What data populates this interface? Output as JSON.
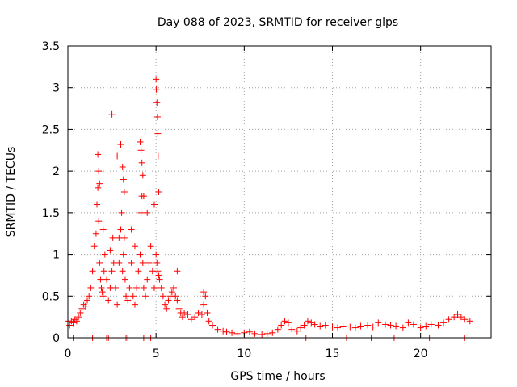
{
  "chart_data": {
    "type": "scatter",
    "title": "Day 088 of 2023, SRMTID for receiver glps",
    "xlabel": "GPS time / hours",
    "ylabel": "SRMTID / TECUs",
    "xlim": [
      0,
      24
    ],
    "ylim": [
      0,
      3.5
    ],
    "xticks": [
      0,
      5,
      10,
      15,
      20
    ],
    "xtick_labels": [
      "0",
      "5",
      "10",
      "15",
      "20"
    ],
    "yticks": [
      0,
      0.5,
      1,
      1.5,
      2,
      2.5,
      3,
      3.5
    ],
    "ytick_labels": [
      "0",
      "0.5",
      "1",
      "1.5",
      "2",
      "2.5",
      "3",
      "3.5"
    ],
    "grid": true,
    "marker": "+",
    "color": "#ff0000",
    "series": [
      {
        "name": "SRMTID",
        "x": [
          0.0,
          0.1,
          0.2,
          0.3,
          0.4,
          0.5,
          0.6,
          0.7,
          0.8,
          0.9,
          1.0,
          1.1,
          1.2,
          1.3,
          1.4,
          1.5,
          1.6,
          1.65,
          1.7,
          1.75,
          1.8,
          1.85,
          1.9,
          1.95,
          2.0,
          2.05,
          2.1,
          2.2,
          2.3,
          2.4,
          2.5,
          2.55,
          2.6,
          2.7,
          2.8,
          2.9,
          3.0,
          3.05,
          3.1,
          3.15,
          3.2,
          3.25,
          3.3,
          3.4,
          3.5,
          3.6,
          3.7,
          3.8,
          3.9,
          4.0,
          4.1,
          4.15,
          4.2,
          4.25,
          4.3,
          4.4,
          4.5,
          4.6,
          4.7,
          4.8,
          4.9,
          5.0,
          5.05,
          5.1,
          5.15,
          5.2,
          5.3,
          5.4,
          5.5,
          5.6,
          5.7,
          5.8,
          5.9,
          6.0,
          6.1,
          6.2,
          6.3,
          6.4,
          6.5,
          6.6,
          6.8,
          7.0,
          7.2,
          7.4,
          7.6,
          7.7,
          7.8,
          7.9,
          8.0,
          8.2,
          8.5,
          8.8,
          9.0,
          9.3,
          9.6,
          10.0,
          10.3,
          10.6,
          11.0,
          11.3,
          11.6,
          11.9,
          12.1,
          12.3,
          12.5,
          12.7,
          13.0,
          13.2,
          13.4,
          13.6,
          13.8,
          14.0,
          14.3,
          14.6,
          15.0,
          15.3,
          15.6,
          16.0,
          16.3,
          16.6,
          17.0,
          17.3,
          17.6,
          18.0,
          18.3,
          18.6,
          19.0,
          19.3,
          19.6,
          20.0,
          20.3,
          20.6,
          21.0,
          21.3,
          21.6,
          21.9,
          22.1,
          22.3,
          22.5,
          22.8,
          1.7,
          1.75,
          1.8,
          2.5,
          2.8,
          3.0,
          3.1,
          3.15,
          3.2,
          4.1,
          4.15,
          4.2,
          4.25,
          4.3,
          5.0,
          5.02,
          5.05,
          5.08,
          5.1,
          5.12,
          5.15,
          2.0,
          2.4,
          2.9,
          3.6,
          3.8,
          4.5,
          4.9,
          6.2,
          7.7,
          0.3,
          1.4,
          2.2,
          2.3,
          3.3,
          3.4,
          4.3,
          4.6,
          4.7,
          13.5,
          15.8,
          17.2,
          18.5,
          20.5,
          22.5
        ],
        "y": [
          0.2,
          0.15,
          0.2,
          0.18,
          0.22,
          0.2,
          0.25,
          0.3,
          0.35,
          0.4,
          0.38,
          0.45,
          0.5,
          0.6,
          0.8,
          1.1,
          1.25,
          1.6,
          1.8,
          1.4,
          0.9,
          0.7,
          0.6,
          0.55,
          0.5,
          0.8,
          1.0,
          0.7,
          0.45,
          0.6,
          0.8,
          1.2,
          0.9,
          0.6,
          0.4,
          0.9,
          1.3,
          1.5,
          0.8,
          1.0,
          1.2,
          0.7,
          0.5,
          0.45,
          0.6,
          0.9,
          0.5,
          0.4,
          0.6,
          0.8,
          1.0,
          1.5,
          1.7,
          0.9,
          0.6,
          0.5,
          0.7,
          0.9,
          1.1,
          0.8,
          0.6,
          1.0,
          0.9,
          0.8,
          0.75,
          0.7,
          0.6,
          0.5,
          0.4,
          0.35,
          0.45,
          0.5,
          0.55,
          0.6,
          0.5,
          0.45,
          0.35,
          0.3,
          0.25,
          0.3,
          0.28,
          0.22,
          0.25,
          0.3,
          0.28,
          0.4,
          0.5,
          0.3,
          0.2,
          0.15,
          0.1,
          0.08,
          0.07,
          0.06,
          0.05,
          0.06,
          0.07,
          0.05,
          0.04,
          0.05,
          0.06,
          0.1,
          0.15,
          0.2,
          0.18,
          0.1,
          0.08,
          0.12,
          0.15,
          0.2,
          0.18,
          0.16,
          0.14,
          0.15,
          0.13,
          0.12,
          0.14,
          0.13,
          0.12,
          0.14,
          0.15,
          0.13,
          0.18,
          0.16,
          0.15,
          0.14,
          0.12,
          0.18,
          0.16,
          0.12,
          0.14,
          0.16,
          0.15,
          0.18,
          0.22,
          0.25,
          0.28,
          0.25,
          0.22,
          0.2,
          2.2,
          2.0,
          1.85,
          2.68,
          2.18,
          2.32,
          2.05,
          1.9,
          1.75,
          2.35,
          2.25,
          2.1,
          1.95,
          1.7,
          3.1,
          2.98,
          2.82,
          2.65,
          2.45,
          2.18,
          1.75,
          1.3,
          1.05,
          1.2,
          1.3,
          1.1,
          1.5,
          1.6,
          0.8,
          0.55,
          0.0,
          0.0,
          0.0,
          0.0,
          0.0,
          0.0,
          0.0,
          0.0,
          0.0,
          0.0,
          0.0,
          0.0,
          0.0,
          0.0,
          0.0
        ]
      }
    ]
  }
}
